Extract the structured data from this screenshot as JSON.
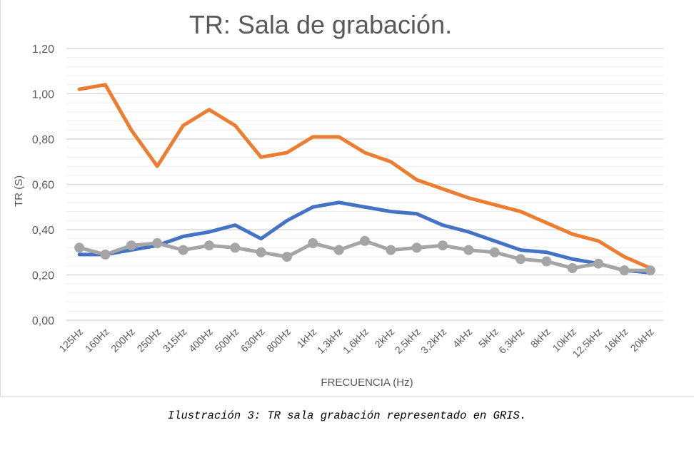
{
  "caption": "Ilustración 3: TR sala grabación representado en GRIS.",
  "chart_data": {
    "type": "line",
    "title": "TR: Sala de grabación.",
    "xlabel": "FRECUENCIA (Hz)",
    "ylabel": "TR (S)",
    "ylim": [
      0,
      1.2
    ],
    "yticks": [
      "0,00",
      "0,20",
      "0,40",
      "0,60",
      "0,80",
      "1,00",
      "1,20"
    ],
    "grid": true,
    "legend": "none",
    "categories": [
      "125Hz",
      "160Hz",
      "200Hz",
      "250Hz",
      "315Hz",
      "400Hz",
      "500Hz",
      "630Hz",
      "800Hz",
      "1kHz",
      "1,3kHz",
      "1,6kHz",
      "2kHz",
      "2,5kHz",
      "3,2kHz",
      "4kHz",
      "5kHz",
      "6,3kHz",
      "8kHz",
      "10kHz",
      "12,5kHz",
      "16kHz",
      "20kHz"
    ],
    "series": [
      {
        "name": "orange",
        "color": "#ed7d31",
        "markers": false,
        "values": [
          1.02,
          1.04,
          0.84,
          0.68,
          0.86,
          0.93,
          0.86,
          0.72,
          0.74,
          0.81,
          0.81,
          0.74,
          0.7,
          0.62,
          0.58,
          0.54,
          0.51,
          0.48,
          0.43,
          0.38,
          0.35,
          0.28,
          0.23
        ]
      },
      {
        "name": "blue",
        "color": "#4472c4",
        "markers": false,
        "values": [
          0.29,
          0.29,
          0.31,
          0.33,
          0.37,
          0.39,
          0.42,
          0.36,
          0.44,
          0.5,
          0.52,
          0.5,
          0.48,
          0.47,
          0.42,
          0.39,
          0.35,
          0.31,
          0.3,
          0.27,
          0.25,
          0.22,
          0.21
        ]
      },
      {
        "name": "gray",
        "color": "#a5a5a5",
        "markers": true,
        "values": [
          0.32,
          0.29,
          0.33,
          0.34,
          0.31,
          0.33,
          0.32,
          0.3,
          0.28,
          0.34,
          0.31,
          0.35,
          0.31,
          0.32,
          0.33,
          0.31,
          0.3,
          0.27,
          0.26,
          0.23,
          0.25,
          0.22,
          0.22
        ]
      }
    ]
  }
}
